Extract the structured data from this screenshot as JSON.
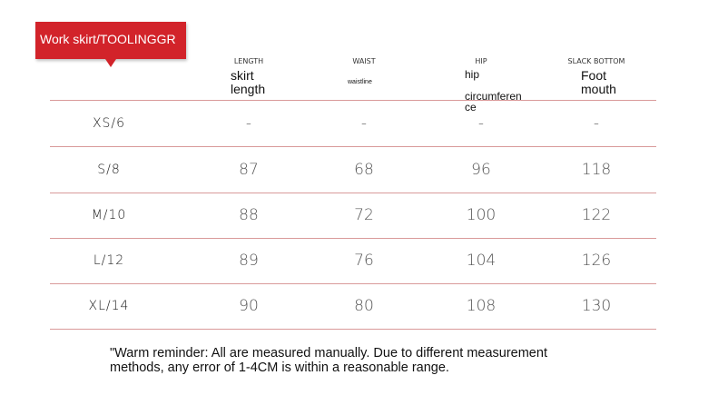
{
  "badge": "Work skirt/TOOLINGGR",
  "table": {
    "columns": [
      {
        "label": "LENGTH",
        "note": "skirt\nlength"
      },
      {
        "label": "WAIST",
        "note": "waistline"
      },
      {
        "label": "HIP",
        "note": "hip\n\ncircumferen\nce"
      },
      {
        "label": "SLACK BOTTOM",
        "note": "Foot\nmouth"
      }
    ],
    "rows": [
      [
        "XS/6",
        "-",
        "-",
        "-",
        "-"
      ],
      [
        "S/8",
        87,
        68,
        96,
        118
      ],
      [
        "M/10",
        88,
        72,
        100,
        122
      ],
      [
        "L/12",
        89,
        76,
        104,
        126
      ],
      [
        "XL/14",
        90,
        80,
        108,
        130
      ]
    ]
  },
  "footnote": "\"Warm reminder: All are measured manually. Due to different measurement methods, any error of 1-4CM is within a reasonable range."
}
